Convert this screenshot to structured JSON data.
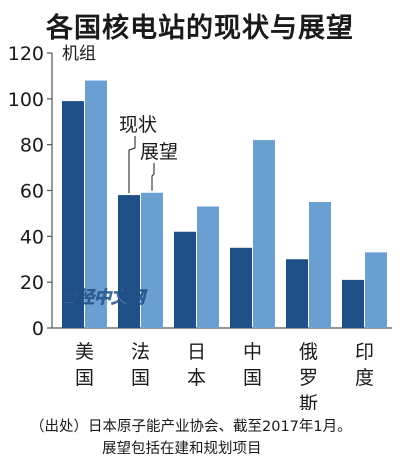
{
  "title": "各国核电站的现状与展望",
  "watermark": "日经中文网",
  "chart_data": {
    "type": "bar",
    "categories": [
      "美国",
      "法国",
      "日本",
      "中国",
      "俄罗斯",
      "印度"
    ],
    "series": [
      {
        "name": "现状",
        "values": [
          99,
          58,
          42,
          35,
          30,
          21
        ]
      },
      {
        "name": "展望",
        "values": [
          108,
          59,
          53,
          82,
          55,
          33
        ]
      }
    ],
    "unit_label": "机组",
    "ylim": [
      0,
      120
    ],
    "yticks": [
      0,
      20,
      40,
      60,
      80,
      100,
      120
    ],
    "grid": false,
    "legend_placement": "annotated-on-bars",
    "colors": {
      "现状": "#1f4f87",
      "展望": "#6a9fd2"
    }
  },
  "notes": {
    "line1": "（出处）日本原子能产业协会、截至2017年1月。",
    "line2": "展望包括在建和规划项目"
  }
}
